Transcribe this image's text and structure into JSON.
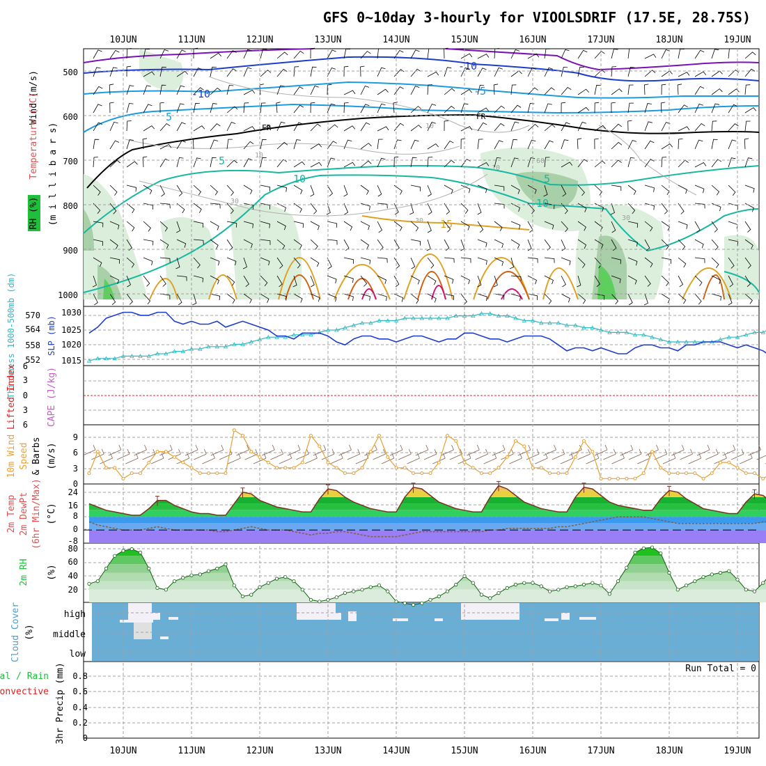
{
  "title": "GFS 0~10day 3-hourly for VIOOLSDRIF (17.5E, 28.75S)",
  "date_labels": [
    "10JUN",
    "11JUN",
    "12JUN",
    "13JUN",
    "14JUN",
    "15JUN",
    "16JUN",
    "17JUN",
    "18JUN",
    "19JUN"
  ],
  "colors": {
    "temp_purple": "#7b10b5",
    "temp_blue": "#1e3ccc",
    "temp_lightblue": "#1a9be0",
    "temp_teal": "#15b8a0",
    "temp_orange": "#e0a020",
    "temp_darkorange": "#d06010",
    "temp_magenta": "#d0107a",
    "rh_green": "#d8ecd8",
    "slp": "#1e3ccc",
    "thickness": "#30b8c0",
    "wind10m": "#e8a030",
    "temp_fill": "#1fbf3c",
    "dew_fill": "#9a7ef5",
    "cloud_bg": "#6aaed6",
    "cloud_fill": "#f4f0f8",
    "grid": "#a0a0a0",
    "red": "#e02020"
  },
  "panel1": {
    "ylabel_wind": "Wind (m/s)",
    "ylabel_temp": "Temperature (°C)",
    "ylabel_rh": "RH (%)",
    "ylabel_pressure": "(m i l l i b a r s)",
    "y_ticks": [
      "500",
      "600",
      "700",
      "800",
      "900",
      "1000"
    ],
    "contour_labels": [
      "-10",
      "-10",
      "-5",
      "-5",
      "5",
      "5",
      "5",
      "10",
      "10",
      "15",
      "FR",
      "FR",
      "10",
      "10",
      "10",
      "30",
      "30",
      "30",
      "60"
    ]
  },
  "panel2": {
    "ylabel_thick": "Thickness 1000-500mb (dm)",
    "ylabel_slp": "SLP (mb)",
    "left_ticks": [
      "570",
      "564",
      "558",
      "552"
    ],
    "right_ticks": [
      "1030",
      "1025",
      "1020",
      "1015"
    ]
  },
  "panel3": {
    "ylabel_li": "Lifted Index",
    "ylabel_cape": "CAPE (J/kg)",
    "ticks": [
      "6",
      "3",
      "0",
      "3",
      "6"
    ]
  },
  "panel4": {
    "ylabel_a": "10m Wind",
    "ylabel_b": "Speed",
    "ylabel_c": "& Barbs",
    "units": "(m/s)",
    "ticks": [
      "9",
      "6",
      "3",
      "0"
    ]
  },
  "panel5": {
    "ylabel_a": "2m Temp",
    "ylabel_b": "2m DewPt",
    "ylabel_c": "(6hr Min/Max)",
    "units": "(°C)",
    "ticks": [
      "24",
      "16",
      "8",
      "0",
      "-8"
    ]
  },
  "panel6": {
    "ylabel": "2m RH",
    "units": "(%)",
    "ticks": [
      "80",
      "60",
      "40",
      "20"
    ]
  },
  "panel7": {
    "ylabel": "Cloud Cover",
    "units": "(%)",
    "levels": [
      "high",
      "middle",
      "low"
    ]
  },
  "panel8": {
    "ylabel_a": "Total / Rain",
    "ylabel_b": "Convective",
    "ylabel_c": "3hr Precip (mm)",
    "run_total": "Run Total = 0",
    "ticks": [
      "0.8",
      "0.6",
      "0.4",
      "0.2",
      "0"
    ]
  },
  "chart_data": [
    {
      "type": "line",
      "title": "SLP and 1000-500mb Thickness",
      "x_start": "09JUN 12Z",
      "step_hours": 3,
      "series": [
        {
          "name": "SLP (mb)",
          "values": [
            1024,
            1026,
            1029,
            1030,
            1031,
            1031,
            1030,
            1030,
            1031,
            1031,
            1028,
            1027,
            1028,
            1027,
            1027,
            1028,
            1026,
            1027,
            1028,
            1027,
            1026,
            1025,
            1023,
            1023,
            1022,
            1024,
            1024,
            1024,
            1023,
            1021,
            1020,
            1022,
            1023,
            1023,
            1022,
            1022,
            1021,
            1022,
            1023,
            1023,
            1022,
            1021,
            1022,
            1022,
            1024,
            1024,
            1023,
            1022,
            1022,
            1021,
            1022,
            1023,
            1023,
            1023,
            1022,
            1020,
            1018,
            1019,
            1019,
            1018,
            1019,
            1018,
            1017,
            1017,
            1019,
            1020,
            1020,
            1019,
            1019,
            1018,
            1020,
            1020,
            1021,
            1021,
            1021,
            1020,
            1019,
            1020,
            1019,
            1018,
            1016,
            1017,
            1019,
            1020,
            1020,
            1020
          ]
        },
        {
          "name": "Thickness (dm)",
          "values": [
            551,
            552,
            552,
            552,
            553,
            553,
            553,
            553,
            554,
            554,
            555,
            555,
            556,
            556,
            557,
            557,
            557,
            558,
            558,
            559,
            560,
            561,
            561,
            561,
            562,
            562,
            562,
            563,
            564,
            564,
            565,
            566,
            567,
            567,
            568,
            568,
            568,
            569,
            569,
            569,
            569,
            569,
            569,
            570,
            570,
            570,
            571,
            571,
            570,
            570,
            569,
            568,
            568,
            567,
            567,
            567,
            566,
            566,
            565,
            565,
            564,
            563,
            563,
            563,
            562,
            562,
            561,
            560,
            559,
            559,
            559,
            559,
            559,
            559,
            560,
            561,
            561,
            562,
            563,
            563,
            565,
            563,
            561,
            560,
            559,
            559
          ]
        }
      ],
      "ylim_left": [
        549,
        574
      ],
      "ylim_right": [
        1013,
        1033
      ]
    },
    {
      "type": "line",
      "title": "10m Wind Speed",
      "units": "m/s",
      "ylim": [
        0,
        11
      ],
      "x_start": "09JUN 12Z",
      "step_hours": 3,
      "values": [
        2,
        6,
        3,
        3,
        1,
        2,
        2,
        4,
        6,
        6,
        5,
        4,
        3,
        2,
        2,
        2,
        2,
        10,
        9,
        6,
        5,
        4,
        3,
        3,
        3,
        4,
        9,
        7,
        4,
        3,
        2,
        2,
        3,
        6,
        9,
        5,
        3,
        3,
        2,
        2,
        2,
        4,
        9,
        8,
        4,
        3,
        2,
        2,
        3,
        5,
        8,
        7,
        3,
        3,
        2,
        2,
        2,
        5,
        8,
        6,
        1,
        1,
        1,
        1,
        1,
        2,
        6,
        3,
        2,
        2,
        2,
        2,
        1,
        2,
        4,
        4,
        3,
        2,
        2,
        1,
        2,
        5,
        4,
        3,
        2,
        1
      ]
    },
    {
      "type": "area",
      "title": "2m Temp and DewPt",
      "units": "°C",
      "ylim": [
        -8,
        28
      ],
      "x_start": "09JUN 12Z",
      "step_hours": 3,
      "series": [
        {
          "name": "2m Temp",
          "values": [
            16,
            14,
            12,
            11,
            10,
            9,
            9,
            13,
            18,
            18,
            15,
            13,
            11,
            10,
            10,
            9,
            9,
            16,
            23,
            22,
            18,
            16,
            14,
            13,
            12,
            11,
            11,
            19,
            25,
            24,
            20,
            17,
            15,
            13,
            12,
            11,
            11,
            20,
            26,
            25,
            21,
            17,
            15,
            13,
            12,
            11,
            11,
            20,
            27,
            25,
            21,
            17,
            15,
            13,
            12,
            11,
            11,
            20,
            26,
            25,
            21,
            17,
            15,
            14,
            13,
            12,
            12,
            19,
            24,
            23,
            19,
            16,
            13,
            12,
            11,
            10,
            10,
            17,
            22,
            21,
            17,
            15,
            12,
            11,
            9,
            8
          ]
        },
        {
          "name": "2m DewPt",
          "values": [
            5,
            3,
            2,
            1,
            0,
            0,
            0,
            1,
            2,
            1,
            0,
            0,
            0,
            0,
            0,
            -1,
            -1,
            0,
            1,
            2,
            1,
            0,
            0,
            0,
            -1,
            -2,
            -3,
            -2,
            -2,
            -1,
            -1,
            -2,
            -3,
            -4,
            -4,
            -4,
            -4,
            -3,
            -2,
            -1,
            -1,
            -1,
            -1,
            -1,
            -1,
            -1,
            -1,
            0,
            0,
            1,
            1,
            1,
            1,
            1,
            1,
            2,
            2,
            3,
            4,
            5,
            6,
            7,
            8,
            8,
            8,
            8,
            7,
            6,
            5,
            4,
            4,
            4,
            4,
            4,
            4,
            4,
            4,
            4,
            4,
            5,
            5,
            5,
            5,
            5,
            5,
            5
          ]
        }
      ]
    },
    {
      "type": "area",
      "title": "2m RH",
      "units": "%",
      "ylim": [
        15,
        85
      ],
      "x_start": "09JUN 12Z",
      "step_hours": 3,
      "values": [
        37,
        40,
        55,
        70,
        76,
        78,
        74,
        55,
        32,
        30,
        40,
        44,
        47,
        48,
        52,
        55,
        60,
        35,
        22,
        24,
        33,
        38,
        43,
        45,
        40,
        30,
        18,
        16,
        18,
        21,
        26,
        28,
        30,
        33,
        35,
        28,
        16,
        14,
        12,
        14,
        18,
        22,
        28,
        36,
        46,
        38,
        24,
        20,
        26,
        32,
        36,
        38,
        38,
        34,
        28,
        30,
        33,
        34,
        36,
        38,
        35,
        25,
        40,
        56,
        74,
        79,
        80,
        73,
        50,
        30,
        35,
        40,
        45,
        48,
        50,
        52,
        42,
        30,
        28,
        38,
        50,
        58,
        63,
        70,
        74,
        82
      ]
    },
    {
      "type": "bar",
      "title": "3hr Precip",
      "units": "mm",
      "ylim": [
        0,
        1
      ],
      "values": "all 0",
      "run_total": 0
    }
  ]
}
